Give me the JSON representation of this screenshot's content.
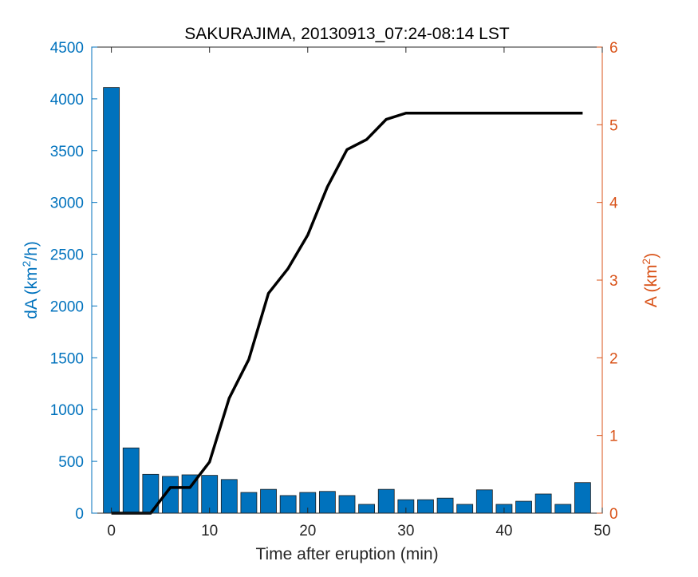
{
  "chart_data": {
    "type": "bar",
    "title": "SAKURAJIMA, 20130913_07:24-08:14 LST",
    "xlabel": "Time after eruption (min)",
    "ylabel_left": {
      "prefix": "dA (km",
      "sup": "2",
      "suffix": "/h)"
    },
    "ylabel_right": {
      "prefix": "A (km",
      "sup": "2",
      "suffix": ")"
    },
    "xlim": [
      -2,
      50
    ],
    "ylim_left": [
      0,
      4500
    ],
    "ylim_right": [
      0,
      6
    ],
    "xticks": [
      0,
      10,
      20,
      30,
      40,
      50
    ],
    "yticks_left": [
      0,
      500,
      1000,
      1500,
      2000,
      2500,
      3000,
      3500,
      4000,
      4500
    ],
    "yticks_right": [
      0,
      1,
      2,
      3,
      4,
      5,
      6
    ],
    "grid": false,
    "series": [
      {
        "type": "bar",
        "axis": "left",
        "color": "#0072bd",
        "x": [
          0,
          2,
          4,
          6,
          8,
          10,
          12,
          14,
          16,
          18,
          20,
          22,
          24,
          26,
          28,
          30,
          32,
          34,
          36,
          38,
          40,
          42,
          44,
          46,
          48
        ],
        "values": [
          4110,
          630,
          375,
          355,
          370,
          365,
          325,
          200,
          230,
          170,
          200,
          210,
          170,
          85,
          230,
          130,
          130,
          145,
          85,
          225,
          85,
          115,
          185,
          85,
          295
        ]
      },
      {
        "type": "line",
        "axis": "right",
        "color": "#000000",
        "x": [
          0,
          2,
          4,
          6,
          8,
          10,
          12,
          14,
          16,
          18,
          20,
          22,
          24,
          26,
          28,
          30,
          32,
          34,
          36,
          38,
          40,
          42,
          44,
          46,
          48
        ],
        "values": [
          0,
          0,
          0,
          0.33,
          0.33,
          0.66,
          1.48,
          1.98,
          2.83,
          3.15,
          3.58,
          4.2,
          4.68,
          4.81,
          5.07,
          5.15,
          5.15,
          5.15,
          5.15,
          5.15,
          5.15,
          5.15,
          5.15,
          5.15,
          5.15
        ]
      }
    ],
    "colors": {
      "left_axis": "#0072bd",
      "right_axis": "#d95319",
      "bottom_axis": "#262626",
      "bar": "#0072bd",
      "line": "#000000"
    }
  }
}
